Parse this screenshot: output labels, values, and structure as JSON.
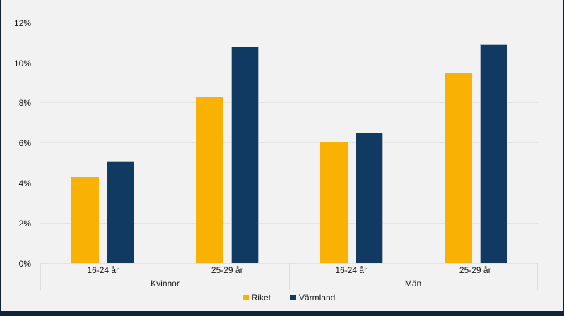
{
  "chart_data": {
    "type": "bar",
    "title": "",
    "categories": [
      "Kvinnor 16-24 år",
      "Kvinnor 25-29 år",
      "Män 16-24 år",
      "Män 25-29 år"
    ],
    "groups": [
      {
        "label": "Kvinnor",
        "age_labels": [
          "16-24 år",
          "25-29 år"
        ]
      },
      {
        "label": "Män",
        "age_labels": [
          "16-24 år",
          "25-29 år"
        ]
      }
    ],
    "series": [
      {
        "name": "Riket",
        "color": "#f9b104",
        "values": [
          4.3,
          8.3,
          6.0,
          9.5
        ]
      },
      {
        "name": "Värmland",
        "color": "#113a63",
        "values": [
          5.1,
          10.8,
          6.5,
          10.9
        ]
      }
    ],
    "y_axis": {
      "ticks": [
        0,
        2,
        4,
        6,
        8,
        10,
        12
      ],
      "tick_suffix": "%",
      "ylim": [
        0,
        12
      ],
      "grid": true
    },
    "legend": {
      "position": "bottom",
      "entries": [
        "Riket",
        "Värmland"
      ]
    }
  },
  "colors": {
    "background": "#f2f2f2",
    "gridline": "#e3e3e3",
    "frame": "#0e2438",
    "series_riket": "#f9b104",
    "series_varmland": "#113a63",
    "text": "#161616"
  }
}
